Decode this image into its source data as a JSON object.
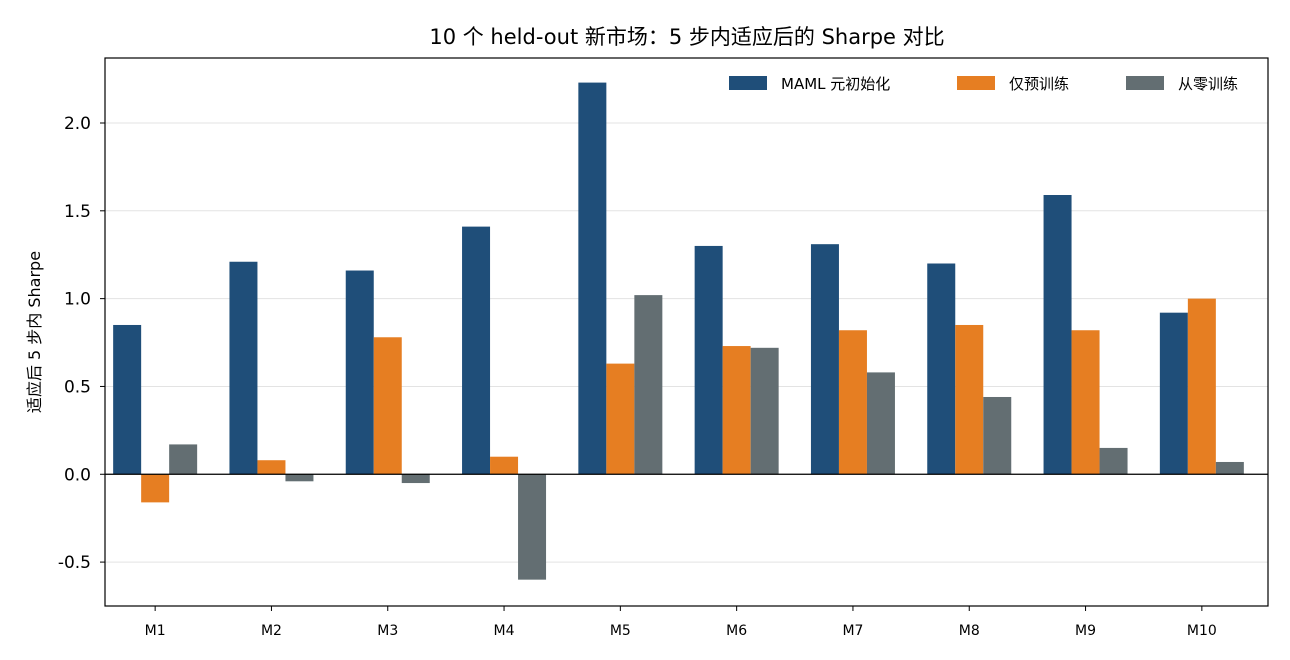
{
  "chart_data": {
    "type": "bar",
    "title": "10 个 held-out 新市场：5 步内适应后的 Sharpe 对比",
    "xlabel": "",
    "ylabel": "适应后 5 步内 Sharpe",
    "categories": [
      "M1",
      "M2",
      "M3",
      "M4",
      "M5",
      "M6",
      "M7",
      "M8",
      "M9",
      "M10"
    ],
    "ylim": [
      -0.75,
      2.37
    ],
    "yticks": [
      -0.5,
      0.0,
      0.5,
      1.0,
      1.5,
      2.0
    ],
    "ytick_labels": [
      "-0.5",
      "0.0",
      "0.5",
      "1.0",
      "1.5",
      "2.0"
    ],
    "grid": "horizontal",
    "legend_position": "top-right",
    "series": [
      {
        "name": "MAML 元初始化",
        "color": "#1f4e79",
        "values": [
          0.85,
          1.21,
          1.16,
          1.41,
          2.23,
          1.3,
          1.31,
          1.2,
          1.59,
          0.92
        ]
      },
      {
        "name": "仅预训练",
        "color": "#e67e22",
        "values": [
          -0.16,
          0.08,
          0.78,
          0.1,
          0.63,
          0.73,
          0.82,
          0.85,
          0.82,
          1.0
        ]
      },
      {
        "name": "从零训练",
        "color": "#636e72",
        "values": [
          0.17,
          -0.04,
          -0.05,
          -0.6,
          1.02,
          0.72,
          0.58,
          0.44,
          0.15,
          0.07
        ]
      }
    ]
  }
}
